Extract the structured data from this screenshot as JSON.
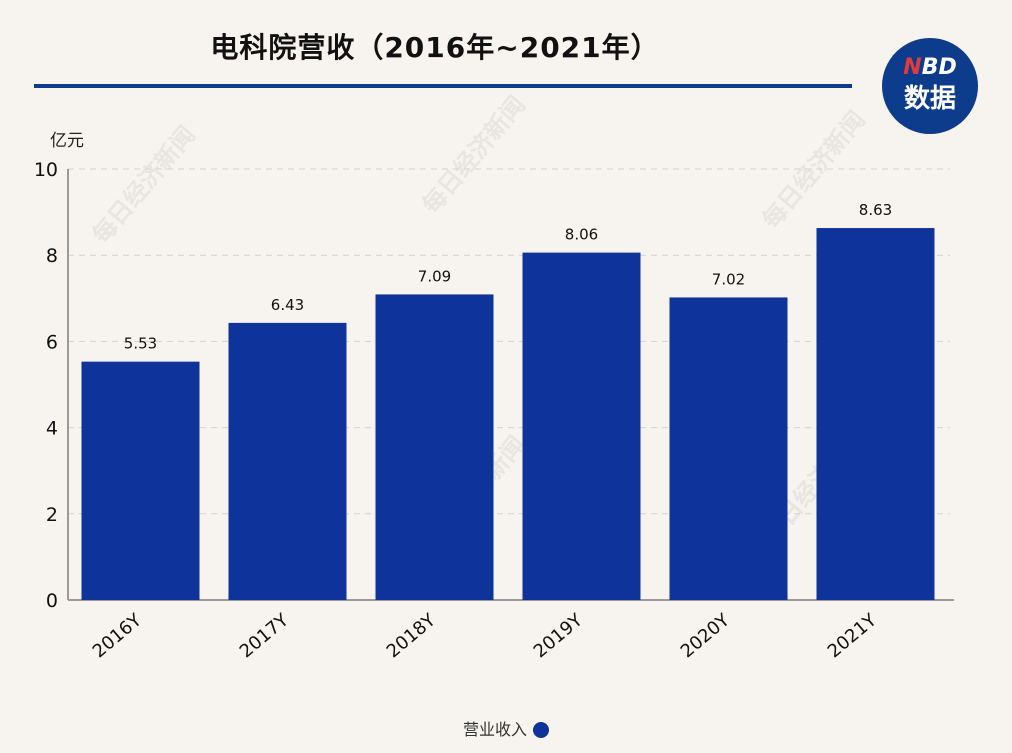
{
  "header": {
    "title": "电科院营收（2016年~2021年）"
  },
  "logo": {
    "line1_n": "N",
    "line1_rest": "BD",
    "line2": "数据"
  },
  "watermark": "每日经济新闻",
  "colors": {
    "bar": "#0e339a",
    "accent": "#0d3c8c",
    "background": "#f7f4ef",
    "grid": "#d6d2cc"
  },
  "chart_data": {
    "type": "bar",
    "title": "电科院营收（2016年~2021年）",
    "ylabel": "亿元",
    "xlabel": "",
    "categories": [
      "2016Y",
      "2017Y",
      "2018Y",
      "2019Y",
      "2020Y",
      "2021Y"
    ],
    "series": [
      {
        "name": "营业收入",
        "values": [
          5.53,
          6.43,
          7.09,
          8.06,
          7.02,
          8.63
        ]
      }
    ],
    "value_labels": [
      "5.53",
      "6.43",
      "7.09",
      "8.06",
      "7.02",
      "8.63"
    ],
    "ylim": [
      0,
      10
    ],
    "yticks": [
      "0",
      "2",
      "4",
      "6",
      "8",
      "10"
    ],
    "grid": true,
    "legend_position": "bottom"
  }
}
